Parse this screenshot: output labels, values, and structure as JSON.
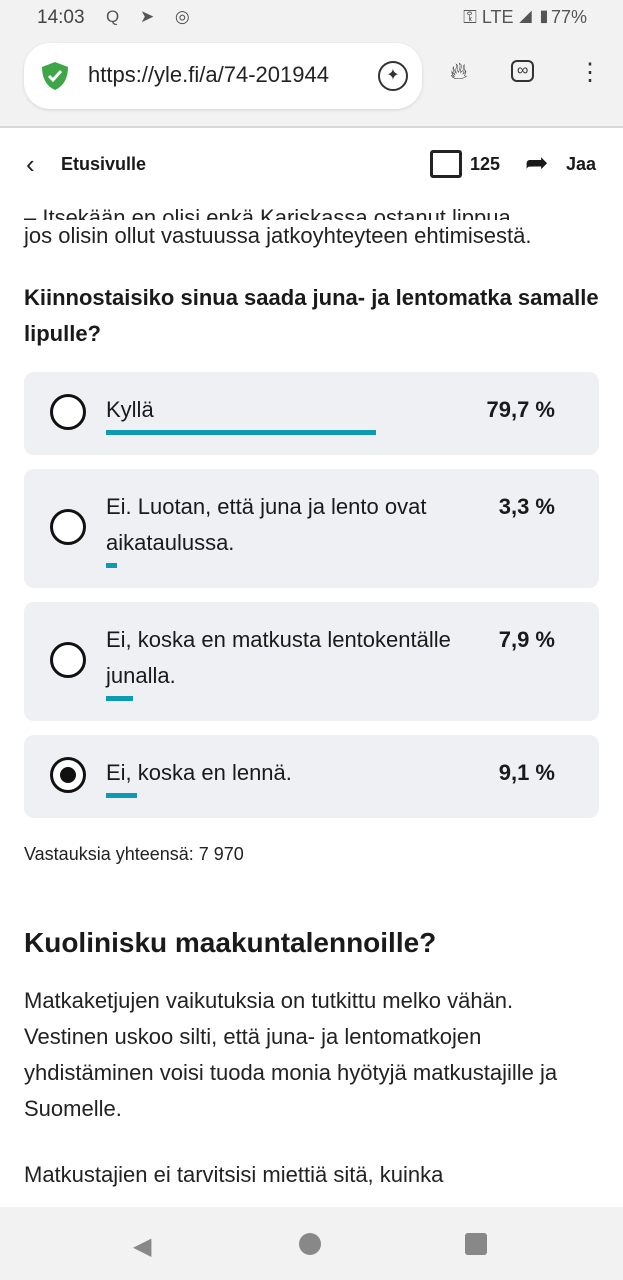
{
  "status_bar": {
    "time": "14:03",
    "network": "LTE",
    "battery": "77%"
  },
  "browser": {
    "url": "https://yle.fi/a/74-201944"
  },
  "header": {
    "back_label": "Etusivulle",
    "comment_count": "125",
    "share_label": "Jaa"
  },
  "article": {
    "clipped_line": "– Itsekään en olisi enkä Kariskassa ostanut lippua,",
    "intro_text": "jos olisin ollut vastuussa jatkoyhteyteen ehtimisestä.",
    "poll": {
      "question": "Kiinnostaisiko sinua saada juna- ja lentomatka samalle lipulle?",
      "options": [
        {
          "label": "Kyllä",
          "percent_text": "79,7 %",
          "percent": 79.7,
          "selected": false
        },
        {
          "label": "Ei. Luotan, että juna ja lento ovat aikataulussa.",
          "percent_text": "3,3 %",
          "percent": 3.3,
          "selected": false
        },
        {
          "label": "Ei, koska en matkusta lentokentälle junalla.",
          "percent_text": "7,9 %",
          "percent": 7.9,
          "selected": false
        },
        {
          "label": "Ei, koska en lennä.",
          "percent_text": "9,1 %",
          "percent": 9.1,
          "selected": true
        }
      ],
      "total": "Vastauksia yhteensä: 7 970",
      "bar_color": "#0e9bb2"
    },
    "heading": "Kuolinisku maakuntalennoille?",
    "paragraph1": "Matkaketjujen vaikutuksia on tutkittu melko vähän. Vestinen uskoo silti, että juna- ja lentomatkojen yhdistäminen voisi tuoda monia hyötyjä matkustajille ja Suomelle.",
    "paragraph2": "Matkustajien ei tarvitsisi miettiä sitä, kuinka"
  }
}
